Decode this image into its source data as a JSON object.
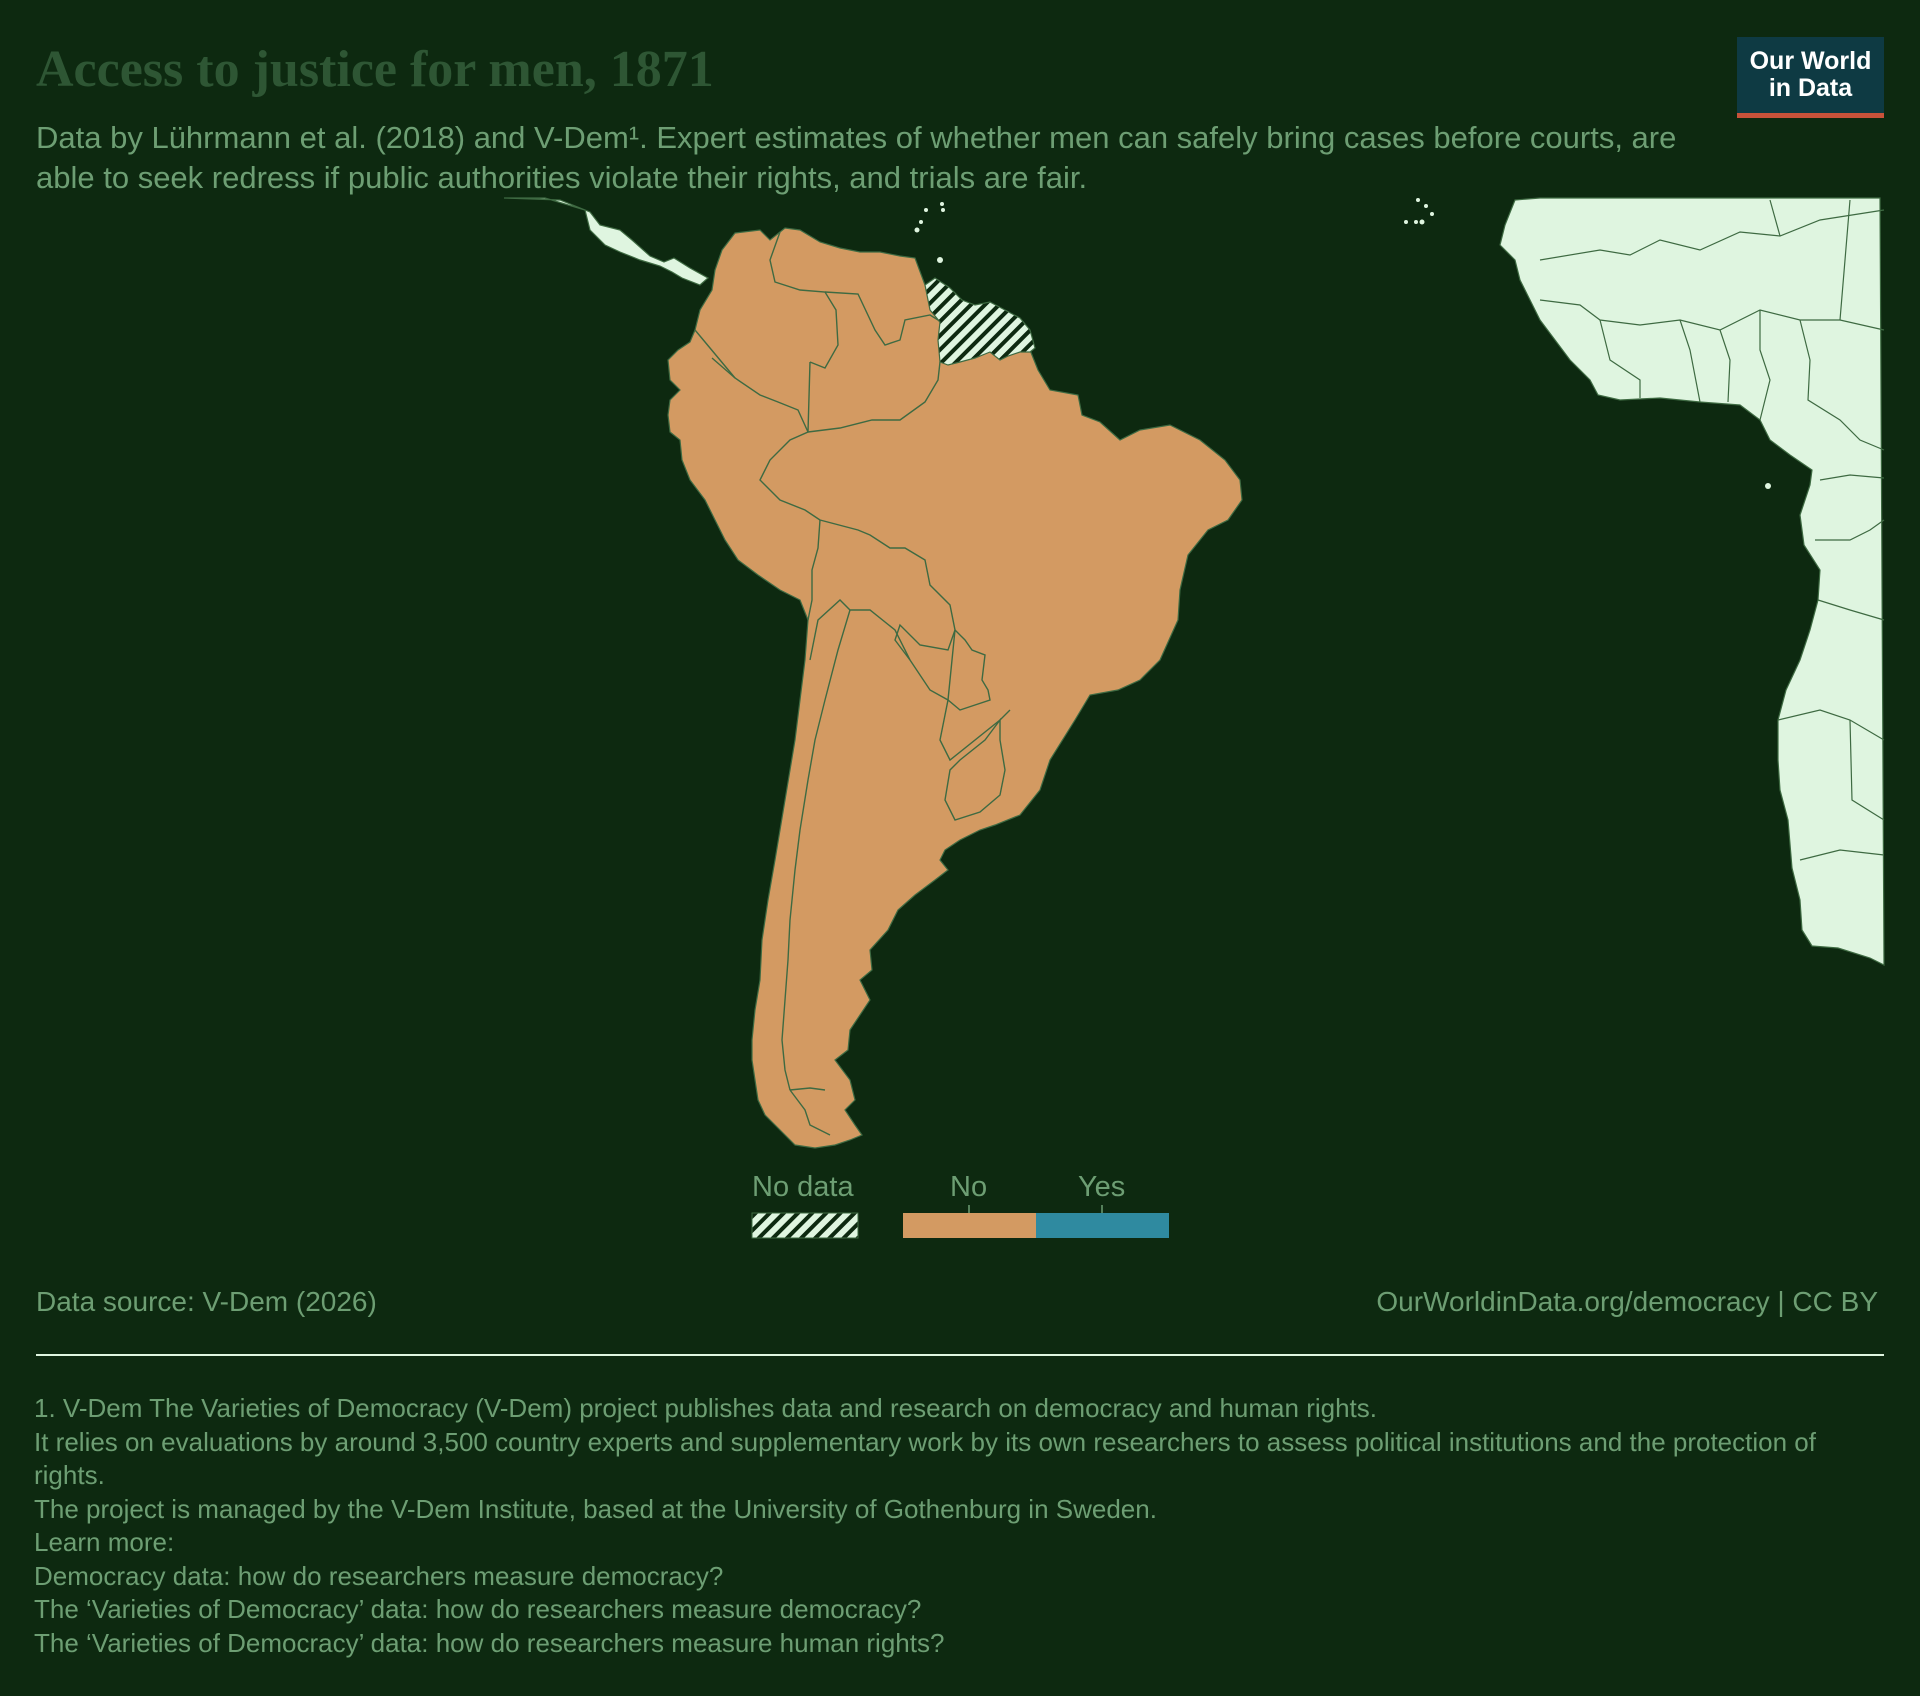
{
  "header": {
    "title": "Access to justice for men, 1871",
    "subtitle": "Data by Lührmann et al. (2018) and V-Dem¹. Expert estimates of whether men can safely bring cases before courts, are able to seek redress if public authorities violate their rights, and trials are fair.",
    "logo_line1": "Our World",
    "logo_line2": "in Data"
  },
  "map": {
    "region": "South America",
    "colors": {
      "background": "#0d2910",
      "no": "#d39a62",
      "yes": "#2f8aa0",
      "no_data_fill": "#dff5e0",
      "no_data_hatch": "#0d2910",
      "border": "#3e6a42"
    },
    "countries": [
      {
        "name": "Colombia",
        "value": "No"
      },
      {
        "name": "Venezuela",
        "value": "No"
      },
      {
        "name": "Ecuador",
        "value": "No"
      },
      {
        "name": "Peru",
        "value": "No"
      },
      {
        "name": "Brazil",
        "value": "No"
      },
      {
        "name": "Bolivia",
        "value": "No"
      },
      {
        "name": "Paraguay",
        "value": "No"
      },
      {
        "name": "Chile",
        "value": "No"
      },
      {
        "name": "Argentina",
        "value": "No"
      },
      {
        "name": "Uruguay",
        "value": "No"
      },
      {
        "name": "Guyana",
        "value": "No data"
      },
      {
        "name": "Suriname",
        "value": "No data"
      },
      {
        "name": "French Guiana",
        "value": "No data"
      }
    ]
  },
  "legend": {
    "no_data": "No data",
    "no": "No",
    "yes": "Yes"
  },
  "footer": {
    "source": "Data source: V-Dem (2026)",
    "credit": "OurWorldinData.org/democracy | CC BY",
    "notes": [
      "1. V-Dem The Varieties of Democracy (V-Dem) project publishes data and research on democracy and human rights.",
      "It relies on evaluations by around 3,500 country experts and supplementary work by its own researchers to assess political institutions and the protection of rights.",
      "The project is managed by the V-Dem Institute, based at the University of Gothenburg in Sweden.",
      "Learn more:",
      "Democracy data: how do researchers measure democracy?",
      "The ‘Varieties of Democracy’ data: how do researchers measure democracy?",
      "The ‘Varieties of Democracy’ data: how do researchers measure human rights?"
    ]
  }
}
